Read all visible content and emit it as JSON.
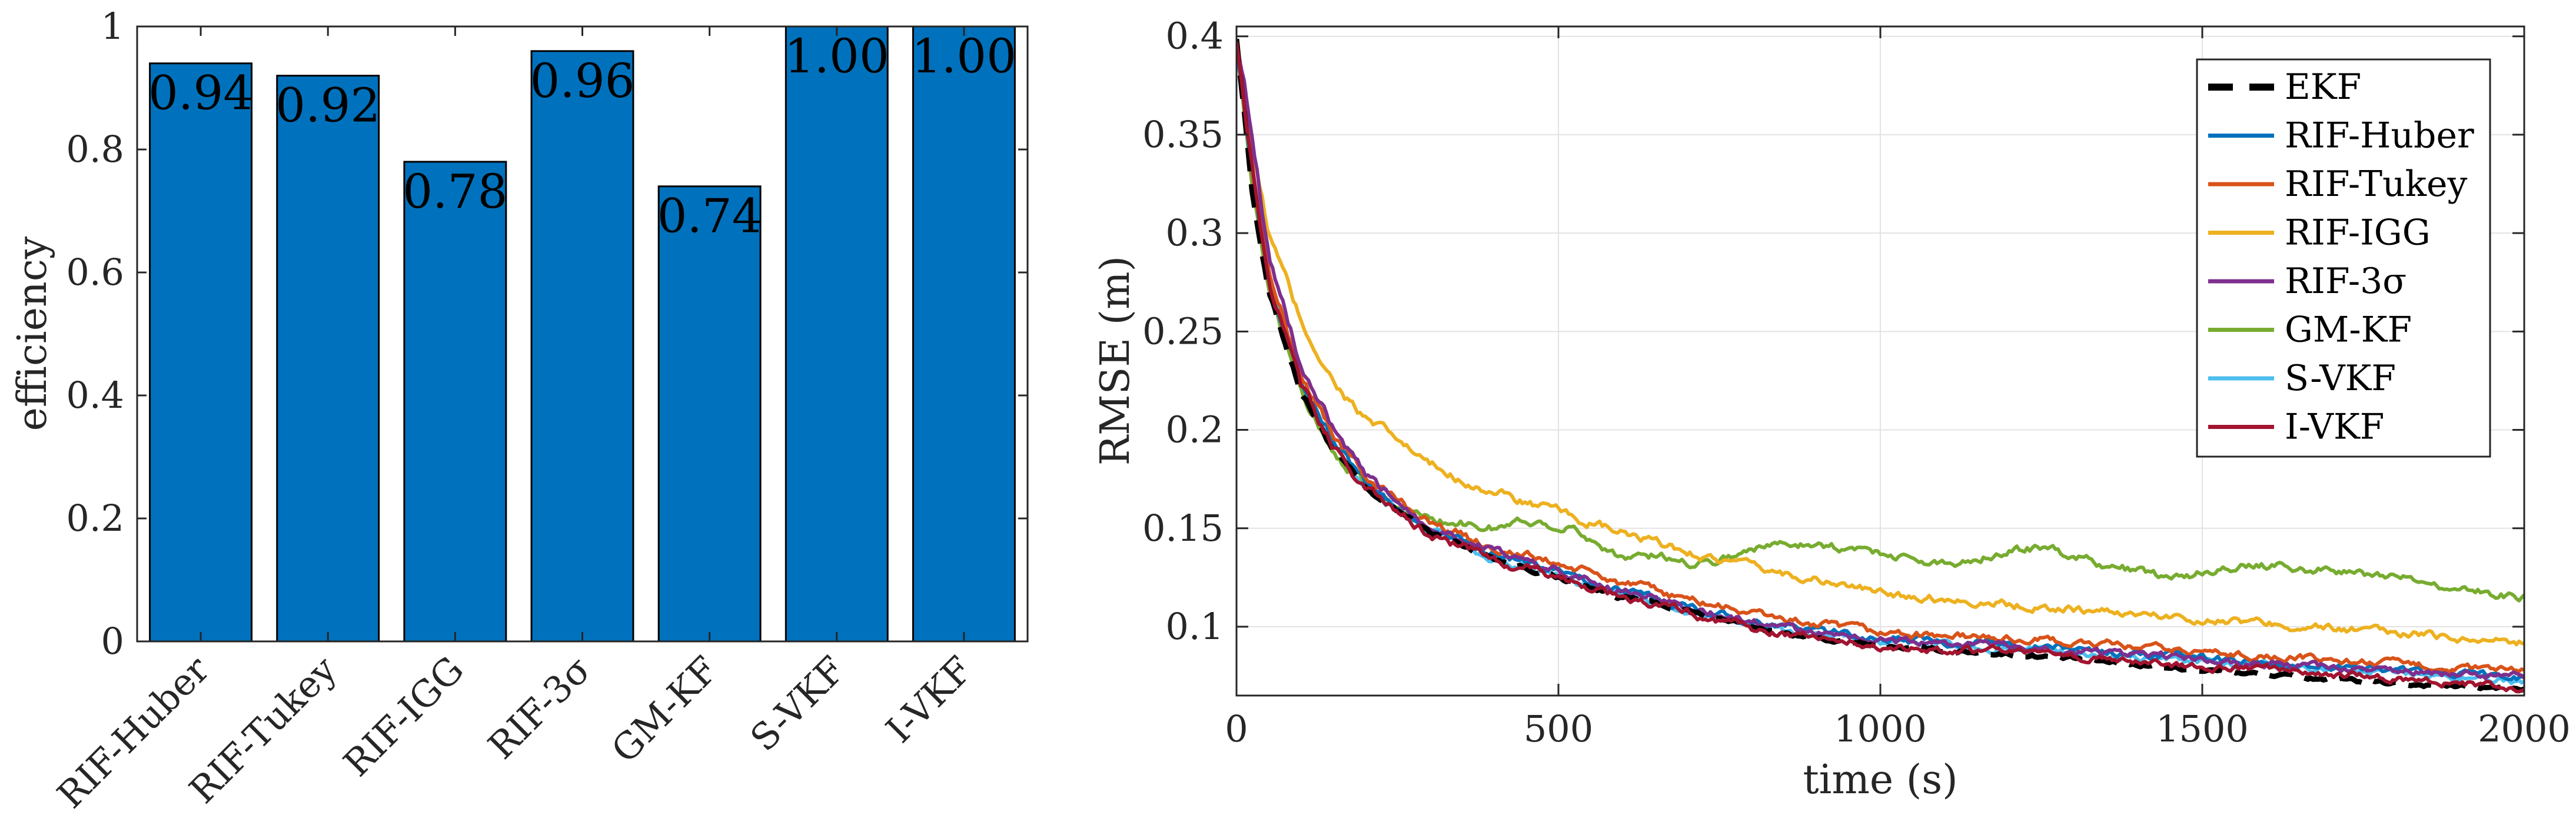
{
  "chart_data": [
    {
      "type": "bar",
      "title": "",
      "xlabel": "",
      "ylabel": "efficiency",
      "ylim": [
        0,
        1
      ],
      "yticks": [
        "0",
        "0.2",
        "0.4",
        "0.6",
        "0.8",
        "1"
      ],
      "categories": [
        "RIF-Huber",
        "RIF-Tukey",
        "RIF-IGG",
        "RIF-3σ",
        "GM-KF",
        "S-VKF",
        "I-VKF"
      ],
      "values": [
        0.94,
        0.92,
        0.78,
        0.96,
        0.74,
        1.0,
        1.0
      ],
      "data_labels": [
        "0.94",
        "0.92",
        "0.78",
        "0.96",
        "0.74",
        "1.00",
        "1.00"
      ],
      "bar_color": "#0072BD"
    },
    {
      "type": "line",
      "title": "",
      "xlabel": "time (s)",
      "ylabel": "RMSE (m)",
      "xlim": [
        0,
        2000
      ],
      "ylim": [
        0.065,
        0.405
      ],
      "xticks": [
        "0",
        "500",
        "1000",
        "1500",
        "2000"
      ],
      "yticks": [
        "0.1",
        "0.15",
        "0.2",
        "0.25",
        "0.3",
        "0.35",
        "0.4"
      ],
      "grid": true,
      "legend_position": "top-right",
      "series": [
        {
          "name": "EKF",
          "color": "#000000",
          "style": "dashed",
          "x": [
            0,
            25,
            50,
            100,
            150,
            200,
            300,
            400,
            500,
            600,
            700,
            800,
            900,
            1000,
            1250,
            1500,
            1750,
            2000
          ],
          "y": [
            0.4,
            0.32,
            0.27,
            0.22,
            0.19,
            0.17,
            0.148,
            0.135,
            0.125,
            0.115,
            0.108,
            0.1,
            0.094,
            0.09,
            0.085,
            0.078,
            0.072,
            0.068
          ]
        },
        {
          "name": "RIF-Huber",
          "color": "#0072BD",
          "style": "solid",
          "x": [
            0,
            25,
            50,
            100,
            150,
            200,
            300,
            400,
            500,
            600,
            700,
            800,
            900,
            1000,
            1250,
            1500,
            1750,
            2000
          ],
          "y": [
            0.4,
            0.33,
            0.28,
            0.225,
            0.195,
            0.172,
            0.15,
            0.137,
            0.128,
            0.118,
            0.11,
            0.103,
            0.098,
            0.094,
            0.09,
            0.084,
            0.079,
            0.074
          ]
        },
        {
          "name": "RIF-Tukey",
          "color": "#D95319",
          "style": "solid",
          "x": [
            0,
            25,
            50,
            100,
            150,
            200,
            300,
            400,
            500,
            600,
            700,
            800,
            900,
            1000,
            1250,
            1500,
            1750,
            2000
          ],
          "y": [
            0.4,
            0.33,
            0.28,
            0.228,
            0.198,
            0.176,
            0.153,
            0.14,
            0.132,
            0.122,
            0.114,
            0.107,
            0.101,
            0.097,
            0.093,
            0.087,
            0.082,
            0.077
          ]
        },
        {
          "name": "RIF-IGG",
          "color": "#EDB120",
          "style": "solid",
          "x": [
            0,
            25,
            50,
            100,
            150,
            200,
            250,
            300,
            400,
            500,
            600,
            700,
            800,
            900,
            1000,
            1250,
            1500,
            1750,
            2000
          ],
          "y": [
            0.4,
            0.34,
            0.3,
            0.255,
            0.225,
            0.205,
            0.195,
            0.182,
            0.168,
            0.158,
            0.147,
            0.138,
            0.13,
            0.124,
            0.117,
            0.11,
            0.104,
            0.098,
            0.092
          ]
        },
        {
          "name": "RIF-3σ",
          "color": "#7E2F8E",
          "style": "solid",
          "x": [
            0,
            25,
            50,
            100,
            150,
            200,
            300,
            400,
            500,
            600,
            700,
            800,
            900,
            1000,
            1250,
            1500,
            1750,
            2000
          ],
          "y": [
            0.4,
            0.35,
            0.29,
            0.232,
            0.2,
            0.176,
            0.152,
            0.138,
            0.128,
            0.118,
            0.11,
            0.102,
            0.097,
            0.093,
            0.089,
            0.083,
            0.078,
            0.074
          ]
        },
        {
          "name": "GM-KF",
          "color": "#77AC30",
          "style": "solid",
          "x": [
            0,
            25,
            50,
            100,
            150,
            200,
            250,
            300,
            400,
            450,
            500,
            550,
            600,
            650,
            700,
            750,
            800,
            850,
            900,
            950,
            1000,
            1050,
            1100,
            1150,
            1200,
            1250,
            1300,
            1350,
            1400,
            1450,
            1500,
            1550,
            1600,
            1650,
            1700,
            1750,
            1800,
            1850,
            1900,
            1950,
            2000
          ],
          "y": [
            0.4,
            0.32,
            0.27,
            0.22,
            0.19,
            0.172,
            0.162,
            0.155,
            0.15,
            0.154,
            0.152,
            0.145,
            0.135,
            0.136,
            0.133,
            0.134,
            0.14,
            0.142,
            0.143,
            0.139,
            0.138,
            0.134,
            0.132,
            0.135,
            0.139,
            0.14,
            0.136,
            0.131,
            0.128,
            0.125,
            0.127,
            0.13,
            0.131,
            0.13,
            0.128,
            0.127,
            0.125,
            0.122,
            0.12,
            0.117,
            0.115
          ]
        },
        {
          "name": "S-VKF",
          "color": "#4DBEEE",
          "style": "solid",
          "x": [
            0,
            25,
            50,
            100,
            150,
            200,
            300,
            400,
            500,
            600,
            700,
            800,
            900,
            1000,
            1250,
            1500,
            1750,
            2000
          ],
          "y": [
            0.4,
            0.33,
            0.278,
            0.222,
            0.193,
            0.171,
            0.149,
            0.135,
            0.126,
            0.116,
            0.108,
            0.101,
            0.096,
            0.092,
            0.088,
            0.082,
            0.077,
            0.072
          ]
        },
        {
          "name": "I-VKF",
          "color": "#A2142F",
          "style": "solid",
          "x": [
            0,
            25,
            50,
            100,
            150,
            200,
            300,
            400,
            500,
            600,
            700,
            800,
            900,
            1000,
            1250,
            1500,
            1750,
            2000
          ],
          "y": [
            0.4,
            0.33,
            0.275,
            0.222,
            0.192,
            0.17,
            0.147,
            0.134,
            0.125,
            0.115,
            0.107,
            0.099,
            0.094,
            0.09,
            0.086,
            0.08,
            0.075,
            0.069
          ]
        }
      ]
    }
  ]
}
